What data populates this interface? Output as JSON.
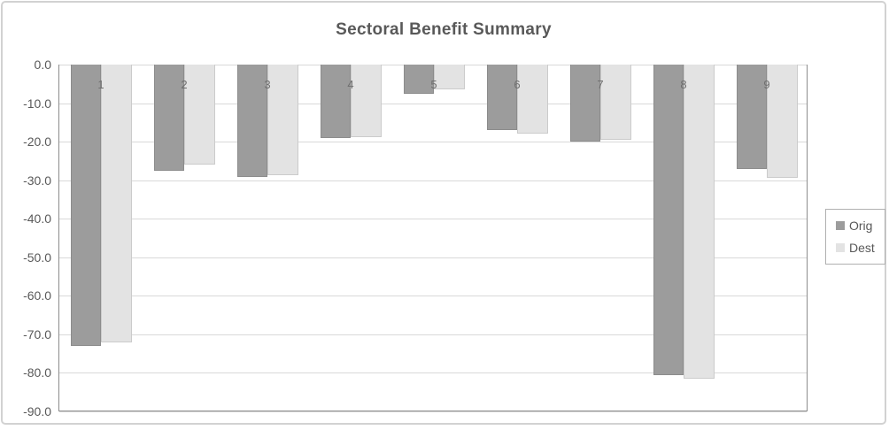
{
  "chart_data": {
    "type": "bar",
    "title": "Sectoral Benefit Summary",
    "categories": [
      "1",
      "2",
      "3",
      "4",
      "5",
      "6",
      "7",
      "8",
      "9"
    ],
    "series": [
      {
        "name": "Orig",
        "color": "#9C9C9C",
        "values": [
          -73.0,
          -27.6,
          -29.2,
          -19.0,
          -7.5,
          -17.0,
          -20.0,
          -80.5,
          -27.0
        ]
      },
      {
        "name": "Dest",
        "color": "#E3E3E3",
        "values": [
          -72.0,
          -26.0,
          -28.8,
          -18.8,
          -6.4,
          -18.0,
          -19.6,
          -81.5,
          -29.3
        ]
      }
    ],
    "ylim": [
      -90,
      0
    ],
    "ytick_step": 10,
    "ytick_labels": [
      "0.0",
      "-10.0",
      "-20.0",
      "-30.0",
      "-40.0",
      "-50.0",
      "-60.0",
      "-70.0",
      "-80.0",
      "-90.0"
    ],
    "grid": true,
    "legend_position": "right"
  },
  "colors": {
    "background": "#FFFFFF",
    "chart_border": "#D2D2D2",
    "grid_line": "#D9D9D9",
    "axis_line": "#8C8C8C",
    "title_text": "#595959",
    "axis_text": "#595959",
    "category_text": "#6E6E6E",
    "legend_border": "#B0B0B0"
  }
}
